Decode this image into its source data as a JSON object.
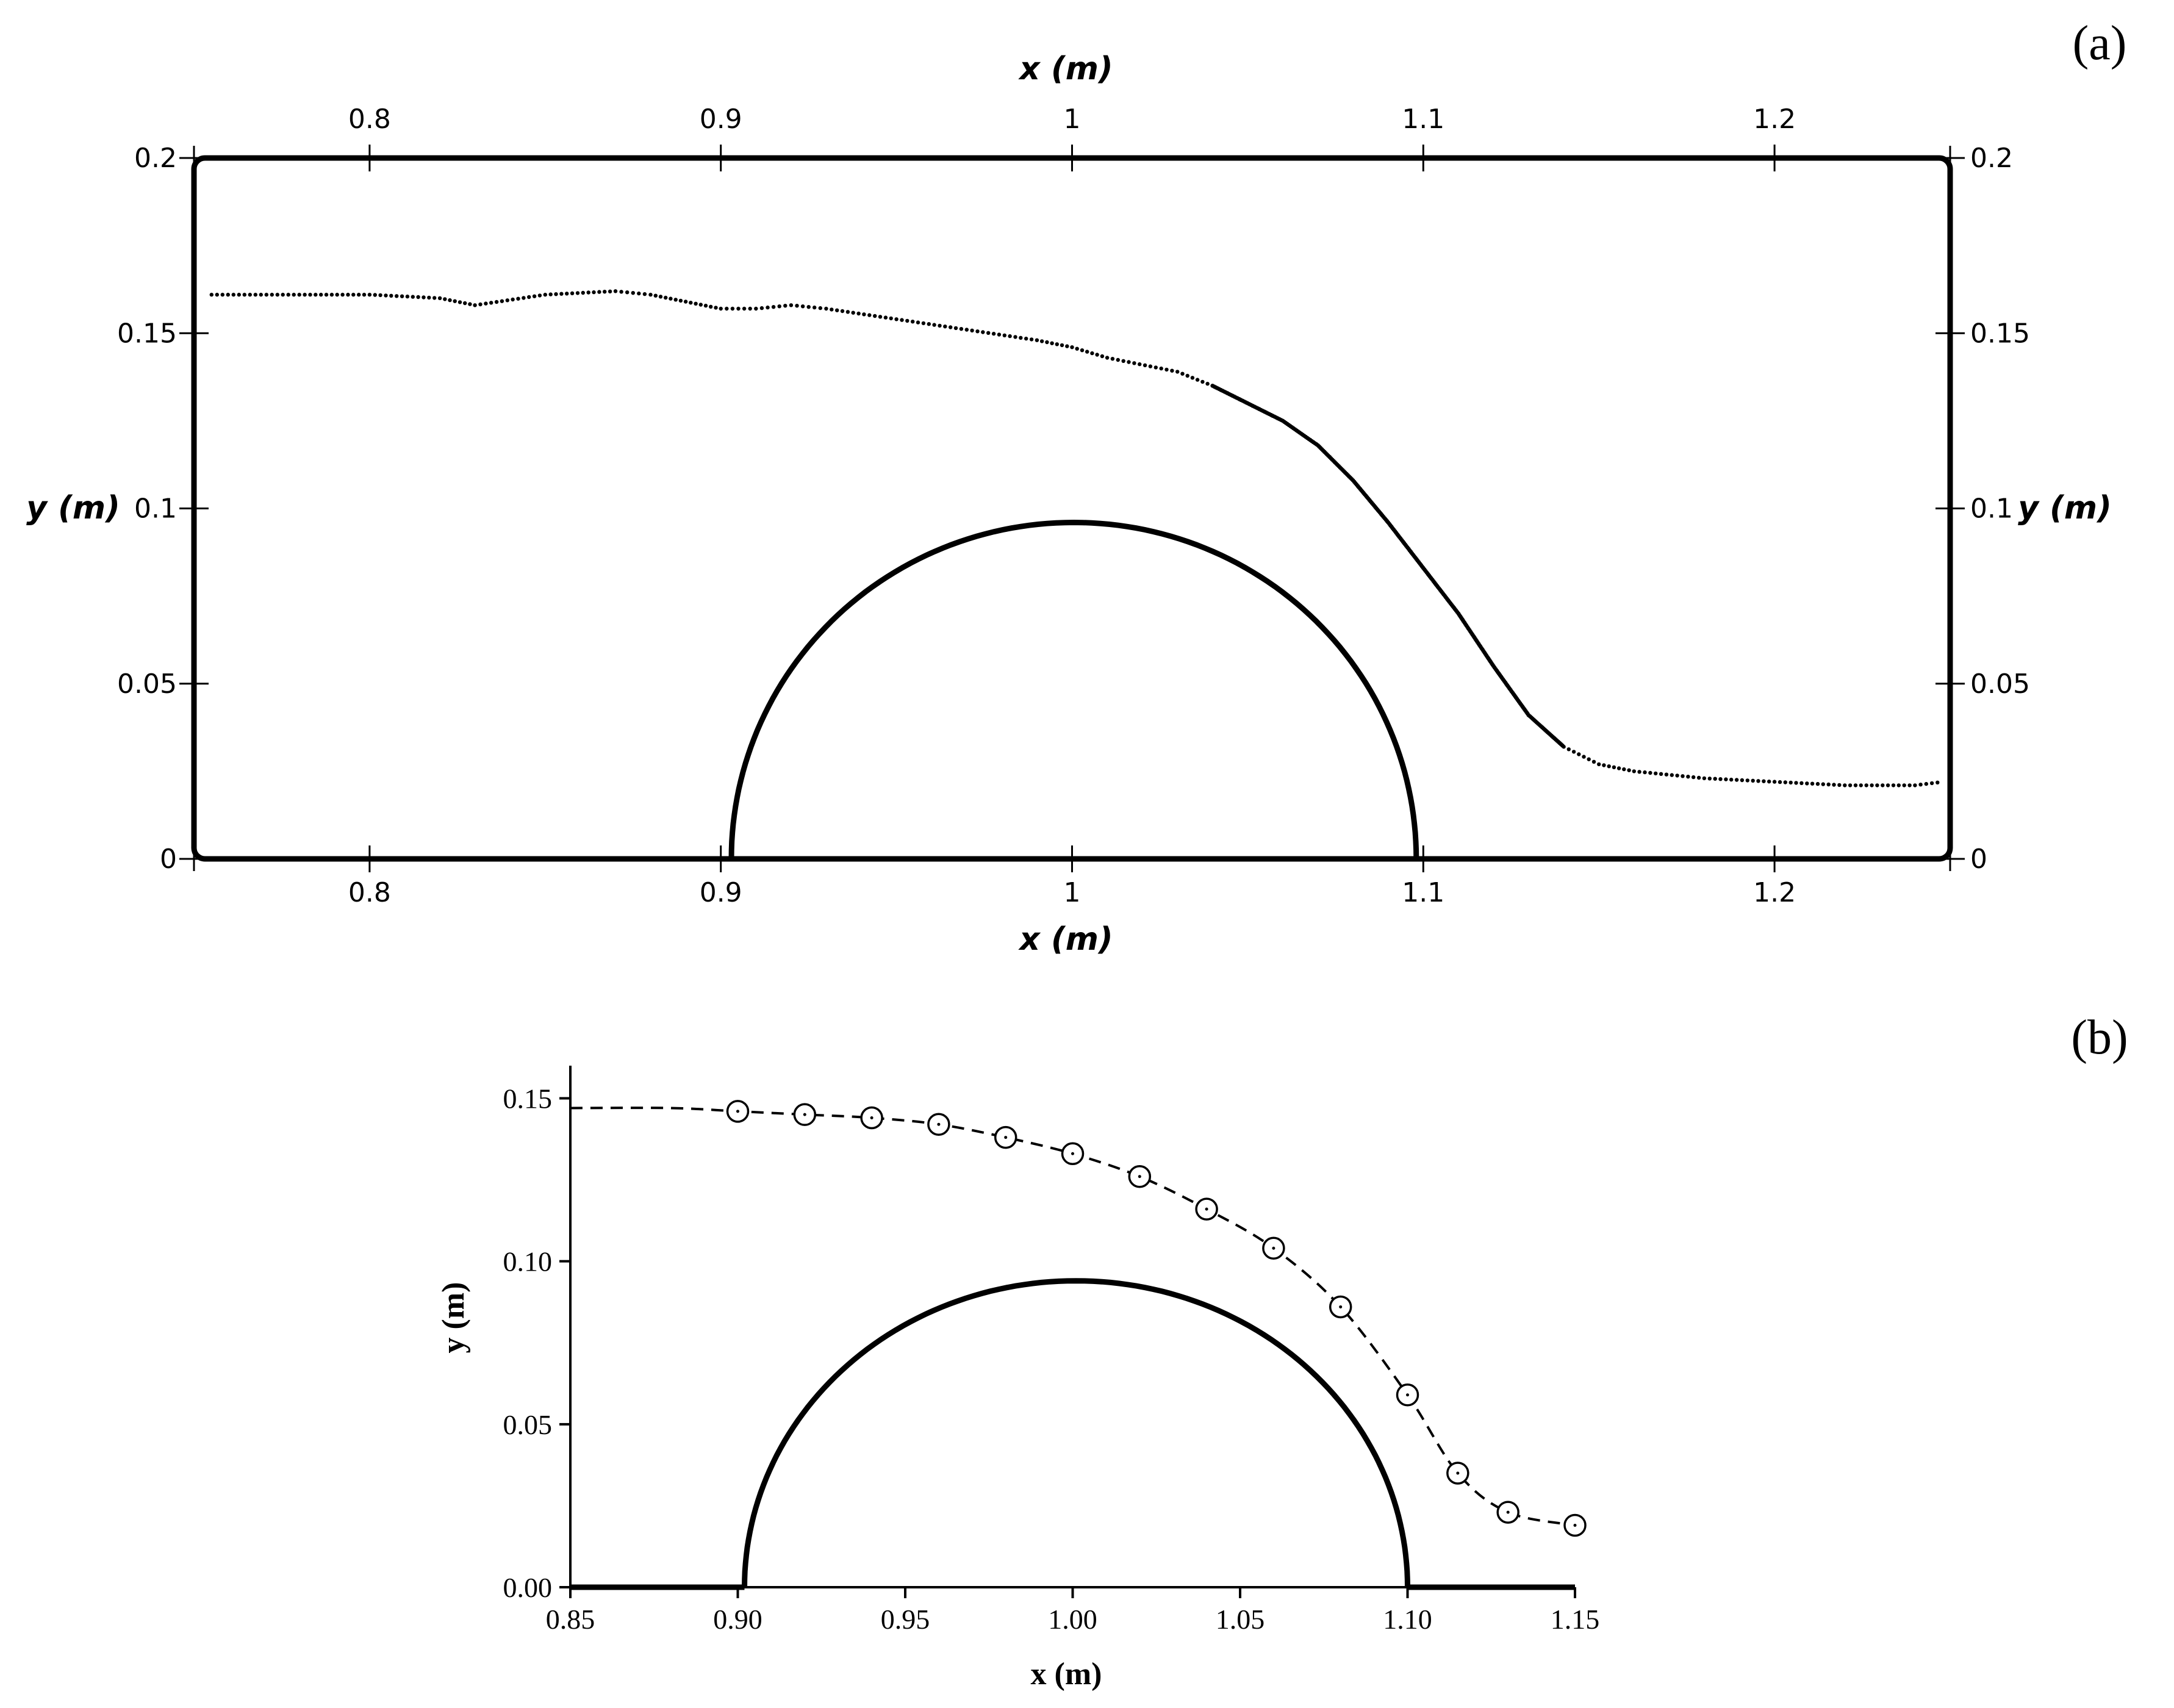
{
  "chart_data": [
    {
      "panel_label": "(a)",
      "type": "scatter",
      "xlabel_top": "x (m)",
      "xlabel_bottom": "x (m)",
      "ylabel_left": "y (m)",
      "ylabel_right": "y (m)",
      "xlim": [
        0.75,
        1.25
      ],
      "ylim": [
        0,
        0.2
      ],
      "xticks": [
        0.8,
        0.9,
        1,
        1.1,
        1.2
      ],
      "xtick_labels": [
        "0.8",
        "0.9",
        "1",
        "1.1",
        "1.2"
      ],
      "yticks": [
        0,
        0.05,
        0.1,
        0.15,
        0.2
      ],
      "ytick_labels": [
        "0",
        "0.05",
        "0.1",
        "0.15",
        "0.2"
      ],
      "grid": false,
      "obstacle": {
        "shape": "semi-ellipse",
        "x_start": 0.903,
        "x_end": 1.098,
        "peak_x": 1.0,
        "peak_y": 0.096
      },
      "series": [
        {
          "values_x": [
            0.755,
            0.78,
            0.8,
            0.82,
            0.83,
            0.85,
            0.87,
            0.88,
            0.89,
            0.9,
            0.91,
            0.92,
            0.93,
            0.95,
            0.97,
            0.99,
            1.0,
            1.01,
            1.03,
            1.04,
            1.05,
            1.06,
            1.07,
            1.08,
            1.09,
            1.1,
            1.11,
            1.12,
            1.13,
            1.14,
            1.15,
            1.16,
            1.18,
            1.2,
            1.22,
            1.24,
            1.248
          ],
          "values_y": [
            0.161,
            0.161,
            0.161,
            0.16,
            0.158,
            0.161,
            0.162,
            0.161,
            0.159,
            0.157,
            0.157,
            0.158,
            0.157,
            0.154,
            0.151,
            0.148,
            0.146,
            0.143,
            0.139,
            0.135,
            0.13,
            0.125,
            0.118,
            0.108,
            0.096,
            0.083,
            0.07,
            0.055,
            0.041,
            0.032,
            0.027,
            0.025,
            0.023,
            0.022,
            0.021,
            0.021,
            0.022
          ]
        }
      ]
    },
    {
      "panel_label": "(b)",
      "type": "line",
      "xlabel": "x (m)",
      "ylabel": "y (m)",
      "xlim": [
        0.85,
        1.15
      ],
      "ylim": [
        0,
        0.16
      ],
      "xticks": [
        0.85,
        0.9,
        0.95,
        1.0,
        1.05,
        1.1,
        1.15
      ],
      "xtick_labels": [
        "0.85",
        "0.90",
        "0.95",
        "1.00",
        "1.05",
        "1.10",
        "1.15"
      ],
      "yticks": [
        0,
        0.05,
        0.1,
        0.15
      ],
      "ytick_labels": [
        "0.00",
        "0.05",
        "0.10",
        "0.15"
      ],
      "grid": false,
      "obstacle": {
        "shape": "semi-ellipse",
        "x_start": 0.902,
        "x_end": 1.1,
        "peak_x": 1.0,
        "peak_y": 0.094
      },
      "series": [
        {
          "style": "dashed line",
          "x": [
            0.85,
            0.88,
            0.9,
            0.92,
            0.94,
            0.96,
            0.98,
            1.0,
            1.02,
            1.04,
            1.06,
            1.08,
            1.1,
            1.115,
            1.13,
            1.15
          ],
          "y": [
            0.147,
            0.147,
            0.146,
            0.145,
            0.144,
            0.142,
            0.138,
            0.133,
            0.126,
            0.116,
            0.104,
            0.086,
            0.059,
            0.035,
            0.023,
            0.019
          ]
        },
        {
          "style": "open circles",
          "x": [
            0.9,
            0.92,
            0.94,
            0.96,
            0.98,
            1.0,
            1.02,
            1.04,
            1.06,
            1.08,
            1.1,
            1.115,
            1.13,
            1.15
          ],
          "y": [
            0.146,
            0.145,
            0.144,
            0.142,
            0.138,
            0.133,
            0.126,
            0.116,
            0.104,
            0.086,
            0.059,
            0.035,
            0.023,
            0.019
          ]
        }
      ]
    }
  ]
}
